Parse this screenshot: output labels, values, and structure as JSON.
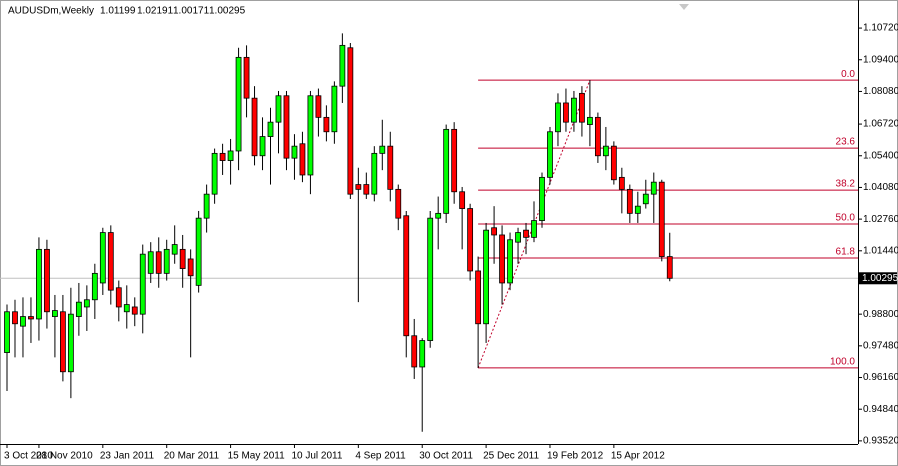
{
  "chart_data": {
    "type": "candlestick",
    "title": "AUDUSDm,Weekly",
    "categories": [
      "3 Oct 2010",
      null,
      null,
      null,
      "28 Nov 2010",
      null,
      null,
      null,
      null,
      null,
      null,
      null,
      "23 Jan 2011",
      null,
      null,
      null,
      null,
      null,
      null,
      null,
      "20 Mar 2011",
      null,
      null,
      null,
      null,
      null,
      null,
      null,
      "15 May 2011",
      null,
      null,
      null,
      null,
      null,
      null,
      null,
      "10 Jul 2011",
      null,
      null,
      null,
      null,
      null,
      null,
      null,
      "4 Sep 2011",
      null,
      null,
      null,
      null,
      null,
      null,
      null,
      "30 Oct 2011",
      null,
      null,
      null,
      null,
      null,
      null,
      null,
      "25 Dec 2011",
      null,
      null,
      null,
      null,
      null,
      null,
      null,
      "19 Feb 2012",
      null,
      null,
      null,
      null,
      null,
      null,
      null,
      "15 Apr 2012",
      null,
      null,
      null,
      null,
      null,
      null,
      null
    ],
    "open": [
      0.972,
      0.989,
      0.983,
      0.987,
      0.986,
      1.015,
      0.987,
      0.989,
      0.964,
      0.987,
      0.991,
      0.994,
      1.001,
      1.022,
      0.999,
      0.989,
      0.991,
      0.988,
      1.005,
      1.014,
      1.005,
      1.013,
      1.015,
      1.011,
      1.0,
      1.028,
      1.038,
      1.055,
      1.052,
      1.056,
      1.095,
      1.078,
      1.054,
      1.062,
      1.068,
      1.079,
      1.053,
      1.059,
      1.046,
      1.079,
      1.07,
      1.064,
      1.083,
      1.099,
      1.042,
      1.042,
      1.038,
      1.055,
      1.058,
      1.04,
      1.029,
      0.979,
      0.966,
      0.977,
      1.028,
      1.03,
      1.065,
      1.039,
      1.032,
      1.006,
      0.984,
      1.024,
      1.021,
      1.001,
      1.018,
      1.023,
      1.02,
      1.027,
      1.045,
      1.064,
      1.076,
      1.068,
      1.08,
      1.067,
      1.07,
      1.054,
      1.058,
      1.045,
      1.04,
      1.03,
      1.034,
      1.038,
      1.043,
      1.01199
    ],
    "high": [
      0.992,
      0.994,
      0.995,
      0.995,
      1.02,
      1.019,
      0.996,
      0.996,
      0.999,
      1.001,
      1.0,
      1.009,
      1.024,
      1.025,
      1.002,
      1.0,
      0.995,
      1.017,
      1.018,
      1.02,
      1.019,
      1.025,
      1.021,
      1.015,
      1.031,
      1.042,
      1.057,
      1.059,
      1.061,
      1.099,
      1.1,
      1.083,
      1.07,
      1.074,
      1.081,
      1.081,
      1.063,
      1.064,
      1.081,
      1.082,
      1.075,
      1.085,
      1.105,
      1.101,
      1.049,
      1.047,
      1.058,
      1.069,
      1.064,
      1.042,
      1.031,
      0.986,
      0.978,
      1.031,
      1.037,
      1.067,
      1.068,
      1.041,
      1.034,
      1.012,
      1.026,
      1.033,
      1.025,
      1.022,
      1.024,
      1.026,
      1.035,
      1.047,
      1.066,
      1.08,
      1.082,
      1.081,
      1.083,
      1.0855,
      1.072,
      1.066,
      1.06,
      1.049,
      1.042,
      1.039,
      1.044,
      1.047,
      1.044,
      1.02191
    ],
    "low": [
      0.956,
      0.97,
      0.97,
      0.976,
      0.977,
      0.982,
      0.97,
      0.96,
      0.953,
      0.979,
      0.981,
      0.986,
      0.996,
      0.992,
      0.985,
      0.982,
      0.983,
      0.98,
      1.001,
      0.999,
      1.002,
      1.009,
      0.999,
      0.97,
      0.997,
      1.022,
      1.034,
      1.046,
      1.042,
      1.048,
      1.07,
      1.05,
      1.048,
      1.042,
      1.055,
      1.048,
      1.044,
      1.043,
      1.038,
      1.062,
      1.06,
      1.059,
      1.076,
      1.036,
      0.993,
      1.036,
      1.035,
      1.048,
      1.035,
      1.023,
      0.97,
      0.961,
      0.939,
      0.974,
      1.015,
      1.026,
      1.034,
      1.015,
      1.002,
      0.9656,
      0.976,
      1.009,
      0.992,
      0.998,
      1.009,
      1.013,
      1.018,
      1.024,
      1.042,
      1.058,
      1.064,
      1.064,
      1.062,
      1.058,
      1.051,
      1.048,
      1.042,
      1.03,
      1.026,
      1.026,
      1.032,
      1.026,
      1.01,
      1.00171
    ],
    "close": [
      0.989,
      0.984,
      0.987,
      0.986,
      1.015,
      0.989,
      0.9895,
      0.964,
      0.988,
      0.993,
      0.994,
      1.005,
      1.022,
      0.998,
      0.991,
      0.992,
      0.988,
      1.013,
      1.014,
      1.005,
      1.015,
      1.017,
      1.007,
      1.004,
      1.028,
      1.038,
      1.055,
      1.052,
      1.056,
      1.095,
      1.078,
      1.054,
      1.062,
      1.068,
      1.079,
      1.053,
      1.058,
      1.046,
      1.079,
      1.07,
      1.064,
      1.083,
      1.1,
      1.038,
      1.04,
      1.038,
      1.055,
      1.058,
      1.04,
      1.028,
      0.979,
      0.966,
      0.977,
      1.028,
      1.03,
      1.065,
      1.039,
      1.032,
      1.006,
      0.984,
      1.023,
      1.021,
      1.001,
      1.019,
      1.022,
      1.02,
      1.027,
      1.045,
      1.064,
      1.076,
      1.068,
      1.078,
      1.068,
      1.07,
      1.054,
      1.058,
      1.044,
      1.04,
      1.03,
      1.033,
      1.038,
      1.043,
      1.012,
      1.00295
    ],
    "up_color": "#00ff00",
    "down_color": "#ff0000",
    "ylim": [
      0.9339,
      1.1189
    ],
    "yticks": [
      {
        "value": 1.1072,
        "label": "1.10720"
      },
      {
        "value": 1.094,
        "label": "1.09400"
      },
      {
        "value": 1.0808,
        "label": "1.08080"
      },
      {
        "value": 1.0672,
        "label": "1.06720"
      },
      {
        "value": 1.054,
        "label": "1.05400"
      },
      {
        "value": 1.0408,
        "label": "1.04080"
      },
      {
        "value": 1.0276,
        "label": "1.02760"
      },
      {
        "value": 1.0144,
        "label": "1.01440"
      },
      {
        "value": 0.988,
        "label": "0.98800"
      },
      {
        "value": 0.9748,
        "label": "0.97480"
      },
      {
        "value": 0.9616,
        "label": "0.96160"
      },
      {
        "value": 0.9484,
        "label": "0.94840"
      },
      {
        "value": 0.9352,
        "label": "0.93520"
      }
    ],
    "grid": false,
    "fibonacci": {
      "high": 1.0855,
      "low": 0.9656,
      "color": "#c0002a",
      "levels": [
        {
          "value": 0,
          "label": "0.0"
        },
        23.6,
        38.2,
        {
          "value": 50,
          "label": "50.0"
        },
        61.8,
        {
          "value": 100,
          "label": "100.0"
        }
      ]
    }
  }
}
